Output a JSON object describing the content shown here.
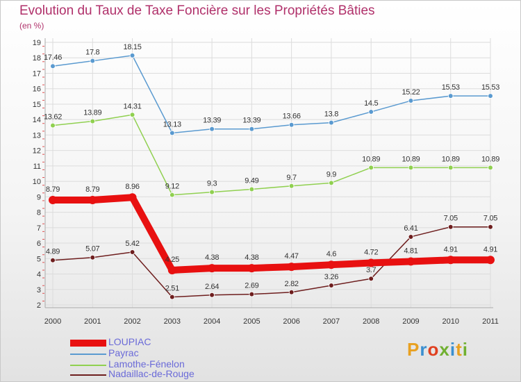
{
  "title": "Evolution du Taux de Taxe Foncière sur les Propriétés Bâties",
  "subtitle": "(en %)",
  "logo": {
    "text": "Proxiti",
    "colors": [
      "#e8a020",
      "#3a8fd0",
      "#e04020",
      "#70b030",
      "#3a8fd0",
      "#e8a020",
      "#70b030"
    ]
  },
  "chart_data": {
    "type": "line",
    "x": [
      "2000",
      "2001",
      "2002",
      "2003",
      "2004",
      "2005",
      "2006",
      "2007",
      "2008",
      "2009",
      "2010",
      "2011"
    ],
    "ylim": [
      2,
      19
    ],
    "yticks": [
      "2",
      "3",
      "4",
      "5",
      "6",
      "7",
      "8",
      "9",
      "10",
      "11",
      "12",
      "13",
      "14",
      "15",
      "16",
      "17",
      "18",
      "19"
    ],
    "grid": true,
    "series": [
      {
        "name": "LOUPIAC",
        "color": "#e81010",
        "emphasis": true,
        "values": [
          8.79,
          8.79,
          8.96,
          4.25,
          4.38,
          4.38,
          4.47,
          4.6,
          4.72,
          4.81,
          4.91,
          4.91
        ],
        "labels": [
          "8.79",
          "8.79",
          "8.96",
          "4.25",
          "4.38",
          "4.38",
          "4.47",
          "4.6",
          "4.72",
          "4.81",
          "4.91",
          "4.91"
        ]
      },
      {
        "name": "Payrac",
        "color": "#5a9ad0",
        "values": [
          17.46,
          17.8,
          18.15,
          13.13,
          13.39,
          13.39,
          13.66,
          13.8,
          14.5,
          15.22,
          15.53,
          15.53
        ],
        "labels": [
          "17.46",
          "17.8",
          "18.15",
          "13.13",
          "13.39",
          "13.39",
          "13.66",
          "13.8",
          "14.5",
          "15.22",
          "15.53",
          "15.53"
        ]
      },
      {
        "name": "Lamothe-Fénelon",
        "color": "#90d050",
        "values": [
          13.62,
          13.89,
          14.31,
          9.12,
          9.3,
          9.49,
          9.7,
          9.9,
          10.89,
          10.89,
          10.89,
          10.89
        ],
        "labels": [
          "13.62",
          "13.89",
          "14.31",
          "9.12",
          "9.3",
          "9.49",
          "9.7",
          "9.9",
          "10.89",
          "10.89",
          "10.89",
          "10.89"
        ]
      },
      {
        "name": "Nadaillac-de-Rouge",
        "color": "#6e1e1e",
        "values": [
          4.89,
          5.07,
          5.42,
          2.51,
          2.64,
          2.69,
          2.82,
          3.26,
          3.7,
          6.41,
          7.05,
          7.05
        ],
        "labels": [
          "4.89",
          "5.07",
          "5.42",
          "2.51",
          "2.64",
          "2.69",
          "2.82",
          "3.26",
          "3.7",
          "6.41",
          "7.05",
          "7.05"
        ]
      }
    ]
  }
}
